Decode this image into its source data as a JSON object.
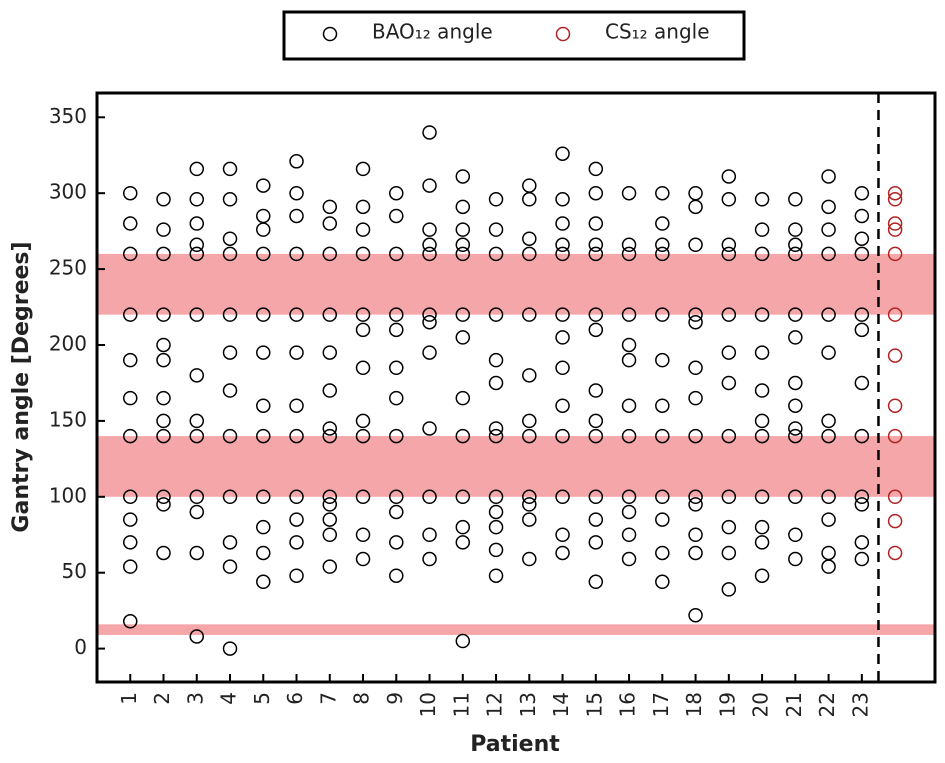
{
  "chart_data": {
    "type": "scatter",
    "xlabel": "Patient",
    "ylabel": "Gantry angle [Degrees]",
    "xlim": [
      0,
      25.2
    ],
    "ylim": [
      -22,
      366
    ],
    "xticks": [
      1,
      2,
      3,
      4,
      5,
      6,
      7,
      8,
      9,
      10,
      11,
      12,
      13,
      14,
      15,
      16,
      17,
      18,
      19,
      20,
      21,
      22,
      23
    ],
    "yticks": [
      0,
      50,
      100,
      150,
      200,
      250,
      300,
      350
    ],
    "bands": [
      [
        220,
        260
      ],
      [
        100,
        140
      ],
      [
        9,
        16
      ]
    ],
    "band_color": "#f4a6a8",
    "vline": 23.5,
    "legend": "top",
    "series": [
      {
        "name": "BAO₁₂ angle",
        "color": "#000000",
        "x": [
          1,
          1,
          1,
          1,
          1,
          1,
          1,
          1,
          1,
          1,
          1,
          1,
          2,
          2,
          2,
          2,
          2,
          2,
          2,
          2,
          2,
          2,
          2,
          2,
          3,
          3,
          3,
          3,
          3,
          3,
          3,
          3,
          3,
          3,
          3,
          3,
          3,
          4,
          4,
          4,
          4,
          4,
          4,
          4,
          4,
          4,
          4,
          4,
          4,
          5,
          5,
          5,
          5,
          5,
          5,
          5,
          5,
          5,
          5,
          5,
          5,
          6,
          6,
          6,
          6,
          6,
          6,
          6,
          6,
          6,
          6,
          6,
          6,
          7,
          7,
          7,
          7,
          7,
          7,
          7,
          7,
          7,
          7,
          7,
          7,
          7,
          8,
          8,
          8,
          8,
          8,
          8,
          8,
          8,
          8,
          8,
          8,
          8,
          9,
          9,
          9,
          9,
          9,
          9,
          9,
          9,
          9,
          9,
          9,
          9,
          10,
          10,
          10,
          10,
          10,
          10,
          10,
          10,
          10,
          10,
          10,
          10,
          11,
          11,
          11,
          11,
          11,
          11,
          11,
          11,
          11,
          11,
          11,
          11,
          11,
          12,
          12,
          12,
          12,
          12,
          12,
          12,
          12,
          12,
          12,
          12,
          12,
          12,
          13,
          13,
          13,
          13,
          13,
          13,
          13,
          13,
          13,
          13,
          13,
          13,
          14,
          14,
          14,
          14,
          14,
          14,
          14,
          14,
          14,
          14,
          14,
          14,
          14,
          15,
          15,
          15,
          15,
          15,
          15,
          15,
          15,
          15,
          15,
          15,
          15,
          15,
          15,
          16,
          16,
          16,
          16,
          16,
          16,
          16,
          16,
          16,
          16,
          16,
          16,
          17,
          17,
          17,
          17,
          17,
          17,
          17,
          17,
          17,
          17,
          17,
          17,
          18,
          18,
          18,
          18,
          18,
          18,
          18,
          18,
          18,
          18,
          18,
          18,
          18,
          19,
          19,
          19,
          19,
          19,
          19,
          19,
          19,
          19,
          19,
          19,
          19,
          20,
          20,
          20,
          20,
          20,
          20,
          20,
          20,
          20,
          20,
          20,
          20,
          21,
          21,
          21,
          21,
          21,
          21,
          21,
          21,
          21,
          21,
          21,
          21,
          21,
          22,
          22,
          22,
          22,
          22,
          22,
          22,
          22,
          22,
          22,
          22,
          22,
          23,
          23,
          23,
          23,
          23,
          23,
          23,
          23,
          23,
          23,
          23,
          23
        ],
        "values": [
          300,
          280,
          260,
          220,
          190,
          165,
          140,
          100,
          85,
          70,
          54,
          18,
          296,
          276,
          260,
          220,
          200,
          190,
          165,
          150,
          140,
          100,
          95,
          63,
          316,
          296,
          280,
          266,
          260,
          220,
          180,
          150,
          140,
          100,
          90,
          63,
          8,
          316,
          296,
          270,
          260,
          220,
          195,
          170,
          140,
          100,
          70,
          54,
          0,
          305,
          285,
          276,
          260,
          220,
          195,
          160,
          140,
          100,
          80,
          63,
          44,
          321,
          300,
          285,
          260,
          220,
          195,
          160,
          140,
          100,
          85,
          70,
          48,
          291,
          280,
          260,
          220,
          195,
          170,
          145,
          140,
          100,
          95,
          85,
          75,
          54,
          316,
          291,
          276,
          260,
          220,
          210,
          185,
          150,
          140,
          100,
          75,
          59,
          300,
          285,
          260,
          220,
          210,
          185,
          165,
          140,
          100,
          90,
          70,
          48,
          340,
          305,
          276,
          266,
          260,
          220,
          215,
          195,
          145,
          100,
          75,
          59,
          311,
          291,
          276,
          266,
          260,
          220,
          205,
          165,
          140,
          100,
          80,
          70,
          5,
          296,
          276,
          260,
          220,
          190,
          175,
          145,
          140,
          100,
          90,
          80,
          65,
          48,
          305,
          296,
          270,
          260,
          220,
          180,
          150,
          140,
          100,
          95,
          85,
          59,
          326,
          296,
          280,
          266,
          260,
          220,
          205,
          185,
          160,
          140,
          100,
          75,
          63,
          316,
          300,
          280,
          266,
          260,
          220,
          210,
          170,
          150,
          140,
          100,
          85,
          70,
          44,
          300,
          266,
          260,
          220,
          200,
          190,
          160,
          140,
          100,
          90,
          75,
          59,
          300,
          280,
          266,
          260,
          220,
          190,
          160,
          140,
          100,
          85,
          63,
          44,
          300,
          291,
          266,
          220,
          215,
          185,
          165,
          140,
          100,
          95,
          75,
          63,
          22,
          311,
          296,
          266,
          260,
          220,
          195,
          175,
          140,
          100,
          80,
          63,
          39,
          296,
          276,
          260,
          220,
          195,
          170,
          150,
          140,
          100,
          80,
          70,
          48,
          296,
          276,
          266,
          260,
          220,
          205,
          175,
          160,
          145,
          140,
          100,
          75,
          59,
          311,
          291,
          276,
          260,
          220,
          195,
          150,
          140,
          100,
          85,
          63,
          54,
          300,
          285,
          270,
          260,
          220,
          210,
          175,
          140,
          100,
          95,
          70,
          59
        ]
      },
      {
        "name": "CS₁₂ angle",
        "color": "#b22222",
        "x": [
          24,
          24,
          24,
          24,
          24,
          24,
          24,
          24,
          24,
          24,
          24,
          24
        ],
        "values": [
          300,
          296,
          280,
          276,
          260,
          220,
          193,
          160,
          140,
          100,
          84,
          63
        ]
      }
    ]
  }
}
